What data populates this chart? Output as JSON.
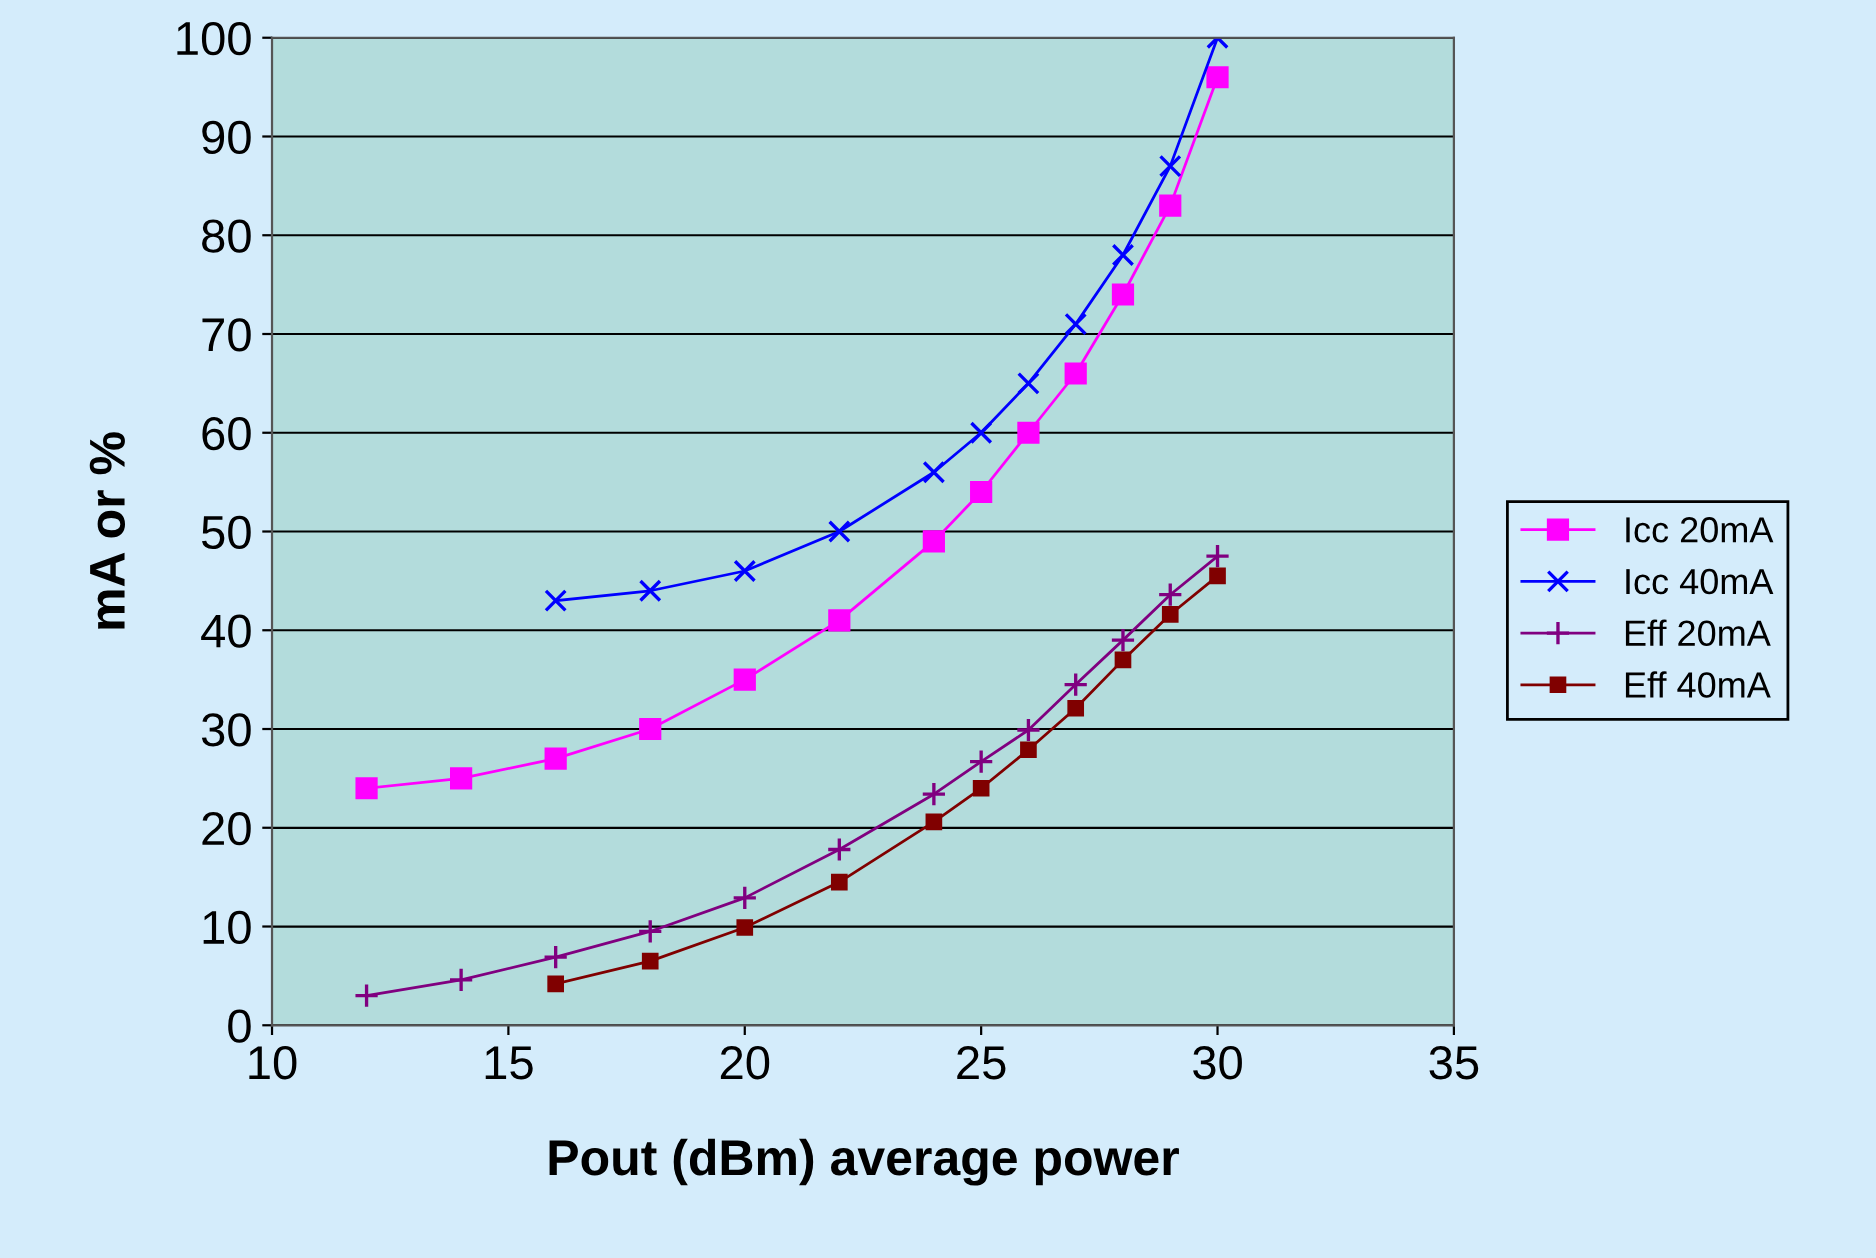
{
  "chart_data": {
    "type": "line",
    "xlabel": "Pout (dBm) average power",
    "ylabel": "mA or %",
    "xlim": [
      10,
      35
    ],
    "xticks": [
      10,
      15,
      20,
      25,
      30,
      35
    ],
    "ylim": [
      0,
      100
    ],
    "yticks": [
      0,
      10,
      20,
      30,
      40,
      50,
      60,
      70,
      80,
      90,
      100
    ],
    "grid": "y",
    "legend": "right",
    "series": [
      {
        "name": "Icc 20mA",
        "color": "#ff00ff",
        "marker": "square",
        "x": [
          12,
          14,
          16,
          18,
          20,
          22,
          24,
          25,
          26,
          27,
          28,
          29,
          30
        ],
        "values": [
          24,
          25,
          27,
          30,
          35,
          41,
          49,
          54,
          60,
          66,
          74,
          83,
          96
        ]
      },
      {
        "name": "Icc 40mA",
        "color": "#0000ff",
        "marker": "cross",
        "x": [
          16,
          18,
          20,
          22,
          24,
          25,
          26,
          27,
          28,
          29,
          30
        ],
        "values": [
          43,
          44,
          46,
          50,
          56,
          60,
          65,
          71,
          78,
          87,
          100
        ]
      },
      {
        "name": "Eff 20mA",
        "color": "#800080",
        "marker": "plus",
        "x": [
          12,
          14,
          16,
          18,
          20,
          22,
          24,
          25,
          26,
          27,
          28,
          29,
          30
        ],
        "values": [
          3.0,
          4.6,
          6.9,
          9.5,
          12.9,
          17.8,
          23.4,
          26.7,
          29.9,
          34.5,
          39.0,
          43.6,
          47.5
        ]
      },
      {
        "name": "Eff 40mA",
        "color": "#800000",
        "marker": "square",
        "x": [
          16,
          18,
          20,
          22,
          24,
          25,
          26,
          27,
          28,
          29,
          30
        ],
        "values": [
          4.2,
          6.5,
          9.9,
          14.5,
          20.6,
          24.0,
          27.9,
          32.1,
          37.0,
          41.6,
          45.5
        ]
      }
    ]
  }
}
